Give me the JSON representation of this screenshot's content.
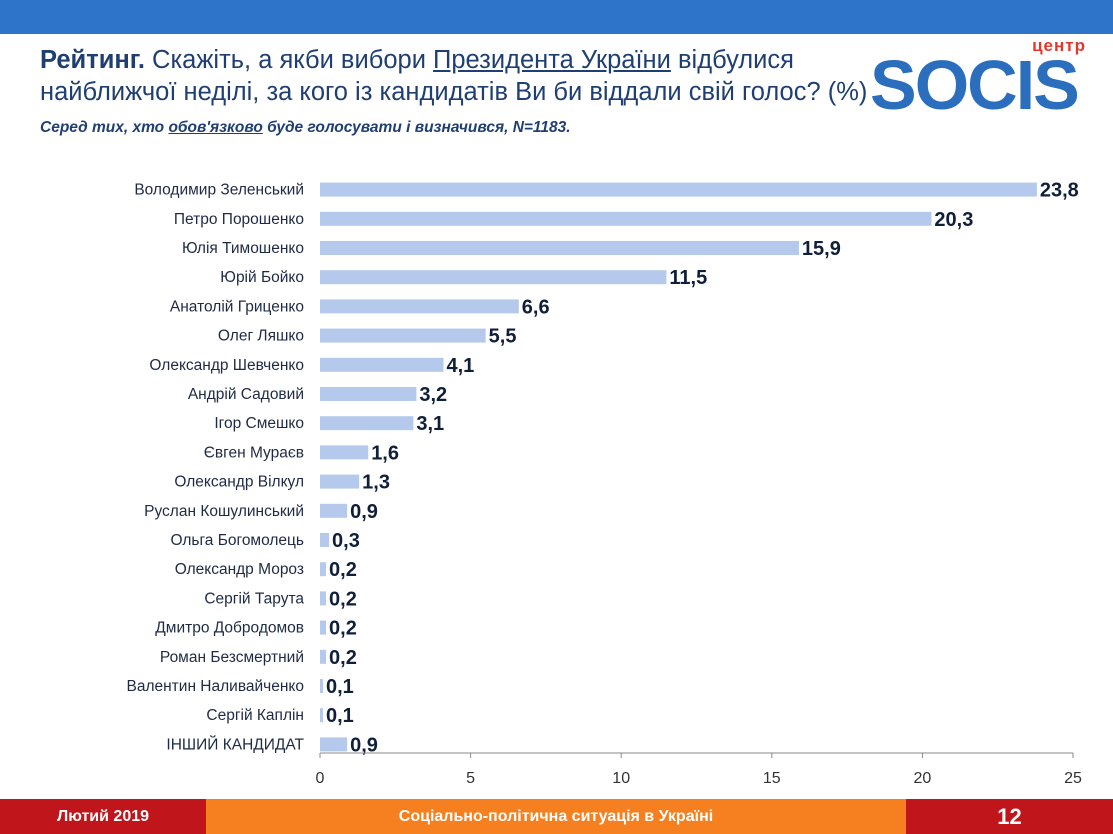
{
  "header": {
    "title_bold": "Рейтинг.",
    "title_part1": " Скажіть, а якби вибори ",
    "title_underlined": "Президента України",
    "title_part2": " відбулися найближчої неділі, за кого із кандидатів Ви би віддали свій голос? (%) ",
    "subtitle_part1": "Серед тих, хто ",
    "subtitle_underlined": "обов'язково",
    "subtitle_part2": " буде голосувати і визначився, N=1183."
  },
  "logo": {
    "small": "центр",
    "word": "SOCIS"
  },
  "colors": {
    "bar": "#b4c9ec",
    "top_band": "#2e74c9",
    "footer_red": "#c0151b",
    "footer_orange": "#f6801f"
  },
  "chart_data": {
    "type": "bar",
    "orientation": "horizontal",
    "categories": [
      "Володимир Зеленський",
      "Петро Порошенко",
      "Юлія Тимошенко",
      "Юрій Бойко",
      "Анатолій Гриценко",
      "Олег Ляшко",
      "Олександр Шевченко",
      "Андрій Садовий",
      "Ігор Смешко",
      "Євген Мураєв",
      "Олександр Вілкул",
      "Руслан Кошулинський",
      "Ольга Богомолець",
      "Олександр Мороз",
      "Сергій Тарута",
      "Дмитро Добродомов",
      "Роман Безсмертний",
      "Валентин Наливайченко",
      "Сергій Каплін",
      "ІНШИЙ КАНДИДАТ"
    ],
    "values": [
      23.8,
      20.3,
      15.9,
      11.5,
      6.6,
      5.5,
      4.1,
      3.2,
      3.1,
      1.6,
      1.3,
      0.9,
      0.3,
      0.2,
      0.2,
      0.2,
      0.2,
      0.1,
      0.1,
      0.9
    ],
    "value_labels": [
      "23,8",
      "20,3",
      "15,9",
      "11,5",
      "6,6",
      "5,5",
      "4,1",
      "3,2",
      "3,1",
      "1,6",
      "1,3",
      "0,9",
      "0,3",
      "0,2",
      "0,2",
      "0,2",
      "0,2",
      "0,1",
      "0,1",
      "0,9"
    ],
    "xlim": [
      0,
      25
    ],
    "xticks": [
      0,
      5,
      10,
      15,
      20,
      25
    ],
    "grid": false
  },
  "footer": {
    "date": "Лютий 2019",
    "topic": "Соціально-політична ситуація в Україні",
    "page": "12"
  }
}
